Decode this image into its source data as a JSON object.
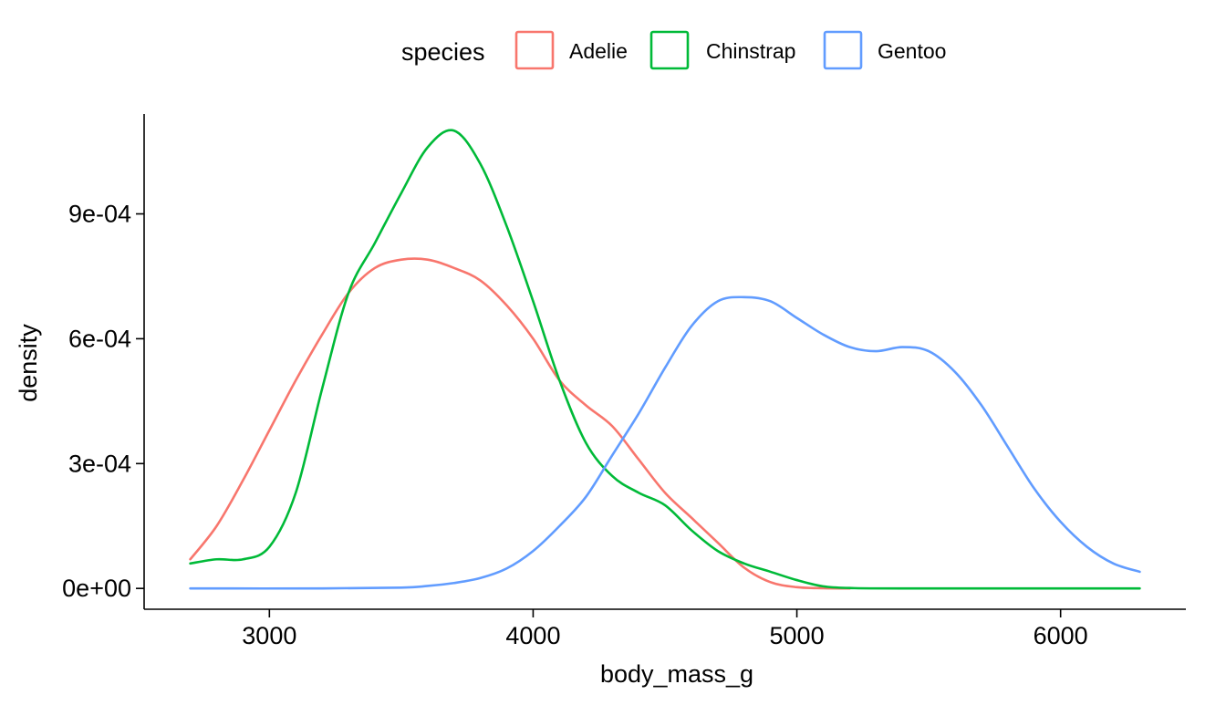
{
  "chart_data": {
    "type": "line",
    "title": "",
    "xlabel": "body_mass_g",
    "ylabel": "density",
    "xlim": [
      2525,
      6475
    ],
    "ylim": [
      -5e-05,
      0.00114
    ],
    "x_ticks": [
      {
        "value": 3000,
        "label": "3000"
      },
      {
        "value": 4000,
        "label": "4000"
      },
      {
        "value": 5000,
        "label": "5000"
      },
      {
        "value": 6000,
        "label": "6000"
      }
    ],
    "y_ticks": [
      {
        "value": 0,
        "label": "0e+00"
      },
      {
        "value": 0.0003,
        "label": "3e-04"
      },
      {
        "value": 0.0006,
        "label": "6e-04"
      },
      {
        "value": 0.0009,
        "label": "9e-04"
      }
    ],
    "grid": false,
    "legend": {
      "title": "species",
      "position": "top"
    },
    "series": [
      {
        "name": "Adelie",
        "color": "#F8766D",
        "points": [
          [
            2700,
            7e-05
          ],
          [
            2800,
            0.00015
          ],
          [
            2900,
            0.00026
          ],
          [
            3000,
            0.00038
          ],
          [
            3100,
            0.0005
          ],
          [
            3200,
            0.00061
          ],
          [
            3300,
            0.00071
          ],
          [
            3400,
            0.00077
          ],
          [
            3500,
            0.00079
          ],
          [
            3600,
            0.00079
          ],
          [
            3700,
            0.00077
          ],
          [
            3800,
            0.00074
          ],
          [
            3900,
            0.00068
          ],
          [
            4000,
            0.0006
          ],
          [
            4100,
            0.0005
          ],
          [
            4200,
            0.00044
          ],
          [
            4300,
            0.00039
          ],
          [
            4400,
            0.00031
          ],
          [
            4500,
            0.00023
          ],
          [
            4600,
            0.00017
          ],
          [
            4700,
            0.00011
          ],
          [
            4800,
            5e-05
          ],
          [
            4900,
            1.5e-05
          ],
          [
            5000,
            3e-06
          ],
          [
            5100,
            5e-07
          ],
          [
            5200,
            0.0
          ]
        ]
      },
      {
        "name": "Chinstrap",
        "color": "#00BA38",
        "points": [
          [
            2700,
            6e-05
          ],
          [
            2800,
            7e-05
          ],
          [
            2900,
            7e-05
          ],
          [
            3000,
            0.0001
          ],
          [
            3100,
            0.00023
          ],
          [
            3200,
            0.00048
          ],
          [
            3300,
            0.00071
          ],
          [
            3400,
            0.00083
          ],
          [
            3500,
            0.00095
          ],
          [
            3600,
            0.00106
          ],
          [
            3700,
            0.0011
          ],
          [
            3800,
            0.00102
          ],
          [
            3900,
            0.00087
          ],
          [
            4000,
            0.00069
          ],
          [
            4100,
            0.0005
          ],
          [
            4200,
            0.00035
          ],
          [
            4300,
            0.00027
          ],
          [
            4400,
            0.00023
          ],
          [
            4500,
            0.0002
          ],
          [
            4600,
            0.00014
          ],
          [
            4700,
            9e-05
          ],
          [
            4800,
            6e-05
          ],
          [
            4900,
            4e-05
          ],
          [
            5000,
            2e-05
          ],
          [
            5100,
            5e-06
          ],
          [
            5200,
            1e-06
          ],
          [
            5400,
            0.0
          ],
          [
            6300,
            0.0
          ]
        ]
      },
      {
        "name": "Gentoo",
        "color": "#619CFF",
        "points": [
          [
            2700,
            0.0
          ],
          [
            3200,
            0.0
          ],
          [
            3500,
            2e-06
          ],
          [
            3600,
            6e-06
          ],
          [
            3700,
            1.3e-05
          ],
          [
            3800,
            2.5e-05
          ],
          [
            3900,
            4.8e-05
          ],
          [
            4000,
            9e-05
          ],
          [
            4100,
            0.00015
          ],
          [
            4200,
            0.00022
          ],
          [
            4300,
            0.00032
          ],
          [
            4400,
            0.00042
          ],
          [
            4500,
            0.00053
          ],
          [
            4600,
            0.00063
          ],
          [
            4700,
            0.00069
          ],
          [
            4800,
            0.0007
          ],
          [
            4900,
            0.00069
          ],
          [
            5000,
            0.00065
          ],
          [
            5100,
            0.00061
          ],
          [
            5200,
            0.00058
          ],
          [
            5300,
            0.00057
          ],
          [
            5400,
            0.00058
          ],
          [
            5500,
            0.00057
          ],
          [
            5600,
            0.00052
          ],
          [
            5700,
            0.00044
          ],
          [
            5800,
            0.00034
          ],
          [
            5900,
            0.00024
          ],
          [
            6000,
            0.00016
          ],
          [
            6100,
            0.0001
          ],
          [
            6200,
            6e-05
          ],
          [
            6300,
            4e-05
          ]
        ]
      }
    ]
  }
}
